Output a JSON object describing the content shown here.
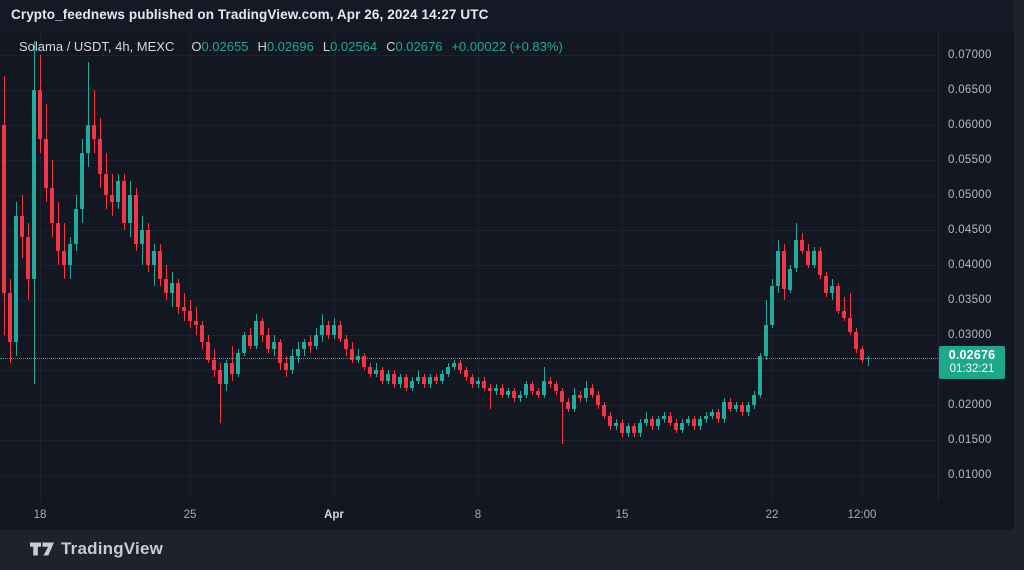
{
  "attribution": {
    "text": "Crypto_feednews published on TradingView.com, Apr 26, 2024 14:27 UTC"
  },
  "legend": {
    "symbol": "Solama / USDT, 4h, MEXC",
    "ohlc": [
      {
        "label": "O",
        "value": "0.02655"
      },
      {
        "label": "H",
        "value": "0.02696"
      },
      {
        "label": "L",
        "value": "0.02564"
      },
      {
        "label": "C",
        "value": "0.02676"
      }
    ],
    "change": "+0.00022 (+0.83%)"
  },
  "price_axis": {
    "last_price": "0.02676",
    "countdown": "01:32:21"
  },
  "footer": {
    "brand": "TradingView"
  },
  "colors": {
    "up": "#22ab9c",
    "down": "#f23645",
    "value_text": "#27a596",
    "last_label_bg": "#1fa78e"
  },
  "chart_data": {
    "type": "candlestick",
    "title": "Solama / USDT, 4h, MEXC",
    "symbol": "Solama / USDT",
    "interval": "4h",
    "exchange": "MEXC",
    "grid": true,
    "legend_position": "top-left",
    "last": {
      "open": 0.02655,
      "high": 0.02696,
      "low": 0.02564,
      "close": 0.02676,
      "change": "+0.00022 (+0.83%)"
    },
    "last_price_value": 0.02676,
    "y_domain": [
      0.006429,
      0.073571
    ],
    "y_ticks": [
      {
        "label": "0.07000",
        "price": 0.07
      },
      {
        "label": "0.06500",
        "price": 0.065
      },
      {
        "label": "0.06000",
        "price": 0.06
      },
      {
        "label": "0.05500",
        "price": 0.055
      },
      {
        "label": "0.05000",
        "price": 0.05
      },
      {
        "label": "0.04500",
        "price": 0.045
      },
      {
        "label": "0.04000",
        "price": 0.04
      },
      {
        "label": "0.03500",
        "price": 0.035
      },
      {
        "label": "0.03000",
        "price": 0.03
      },
      {
        "label": "0.02500",
        "price": 0.025,
        "hidden": true
      },
      {
        "label": "0.02000",
        "price": 0.02
      },
      {
        "label": "0.01500",
        "price": 0.015
      },
      {
        "label": "0.01000",
        "price": 0.01
      }
    ],
    "x_ticks": [
      {
        "label": "18",
        "index": 6
      },
      {
        "label": "25",
        "index": 31
      },
      {
        "label": "Apr",
        "index": 55,
        "major": true
      },
      {
        "label": "8",
        "index": 79
      },
      {
        "label": "15",
        "index": 103
      },
      {
        "label": "22",
        "index": 128
      },
      {
        "label": "12:00",
        "index": 143
      }
    ],
    "x_slots": 145,
    "x_start": 4,
    "x_step": 6,
    "candles": [
      [
        0.06,
        0.067,
        0.03,
        0.036
      ],
      [
        0.036,
        0.038,
        0.026,
        0.029
      ],
      [
        0.029,
        0.049,
        0.027,
        0.047
      ],
      [
        0.047,
        0.05,
        0.041,
        0.044
      ],
      [
        0.044,
        0.046,
        0.035,
        0.038
      ],
      [
        0.038,
        0.072,
        0.023,
        0.065
      ],
      [
        0.065,
        0.07,
        0.056,
        0.058
      ],
      [
        0.058,
        0.063,
        0.049,
        0.051
      ],
      [
        0.051,
        0.055,
        0.044,
        0.046
      ],
      [
        0.046,
        0.049,
        0.04,
        0.042
      ],
      [
        0.042,
        0.046,
        0.038,
        0.04
      ],
      [
        0.04,
        0.044,
        0.038,
        0.043
      ],
      [
        0.043,
        0.05,
        0.042,
        0.048
      ],
      [
        0.048,
        0.058,
        0.046,
        0.056
      ],
      [
        0.056,
        0.069,
        0.054,
        0.06
      ],
      [
        0.06,
        0.065,
        0.056,
        0.058
      ],
      [
        0.058,
        0.061,
        0.051,
        0.053
      ],
      [
        0.053,
        0.056,
        0.048,
        0.05
      ],
      [
        0.05,
        0.053,
        0.047,
        0.049
      ],
      [
        0.049,
        0.053,
        0.048,
        0.052
      ],
      [
        0.052,
        0.053,
        0.045,
        0.046
      ],
      [
        0.046,
        0.052,
        0.044,
        0.05
      ],
      [
        0.05,
        0.051,
        0.042,
        0.043
      ],
      [
        0.043,
        0.047,
        0.04,
        0.045
      ],
      [
        0.045,
        0.046,
        0.039,
        0.04
      ],
      [
        0.04,
        0.043,
        0.037,
        0.042
      ],
      [
        0.042,
        0.043,
        0.037,
        0.038
      ],
      [
        0.038,
        0.04,
        0.035,
        0.036
      ],
      [
        0.036,
        0.039,
        0.034,
        0.0375
      ],
      [
        0.0375,
        0.038,
        0.033,
        0.034
      ],
      [
        0.034,
        0.036,
        0.032,
        0.0335
      ],
      [
        0.0335,
        0.035,
        0.031,
        0.032
      ],
      [
        0.032,
        0.034,
        0.03,
        0.0315
      ],
      [
        0.0315,
        0.032,
        0.028,
        0.029
      ],
      [
        0.029,
        0.03,
        0.026,
        0.0265
      ],
      [
        0.0265,
        0.028,
        0.024,
        0.025
      ],
      [
        0.025,
        0.026,
        0.0175,
        0.023
      ],
      [
        0.023,
        0.0265,
        0.022,
        0.026
      ],
      [
        0.026,
        0.0285,
        0.0235,
        0.0245
      ],
      [
        0.0245,
        0.028,
        0.024,
        0.0275
      ],
      [
        0.0275,
        0.0305,
        0.027,
        0.03
      ],
      [
        0.03,
        0.031,
        0.028,
        0.0285
      ],
      [
        0.0285,
        0.033,
        0.028,
        0.032
      ],
      [
        0.032,
        0.0325,
        0.029,
        0.03
      ],
      [
        0.03,
        0.031,
        0.0275,
        0.028
      ],
      [
        0.028,
        0.03,
        0.027,
        0.029
      ],
      [
        0.029,
        0.0295,
        0.025,
        0.026
      ],
      [
        0.026,
        0.027,
        0.024,
        0.025
      ],
      [
        0.025,
        0.028,
        0.0245,
        0.027
      ],
      [
        0.027,
        0.029,
        0.026,
        0.028
      ],
      [
        0.028,
        0.0295,
        0.027,
        0.029
      ],
      [
        0.029,
        0.03,
        0.0275,
        0.0285
      ],
      [
        0.0285,
        0.031,
        0.028,
        0.03
      ],
      [
        0.03,
        0.033,
        0.029,
        0.0315
      ],
      [
        0.0315,
        0.032,
        0.0295,
        0.03
      ],
      [
        0.03,
        0.0325,
        0.0295,
        0.0315
      ],
      [
        0.0315,
        0.032,
        0.029,
        0.0295
      ],
      [
        0.0295,
        0.03,
        0.027,
        0.028
      ],
      [
        0.028,
        0.029,
        0.026,
        0.0265
      ],
      [
        0.0265,
        0.028,
        0.026,
        0.027
      ],
      [
        0.027,
        0.0275,
        0.025,
        0.0255
      ],
      [
        0.0255,
        0.026,
        0.024,
        0.0245
      ],
      [
        0.0245,
        0.026,
        0.024,
        0.025
      ],
      [
        0.025,
        0.0255,
        0.023,
        0.0235
      ],
      [
        0.0235,
        0.025,
        0.023,
        0.0245
      ],
      [
        0.0245,
        0.025,
        0.0225,
        0.023
      ],
      [
        0.023,
        0.0245,
        0.0225,
        0.024
      ],
      [
        0.024,
        0.0245,
        0.022,
        0.0225
      ],
      [
        0.0225,
        0.024,
        0.022,
        0.0235
      ],
      [
        0.0235,
        0.025,
        0.023,
        0.024
      ],
      [
        0.024,
        0.0245,
        0.0225,
        0.023
      ],
      [
        0.023,
        0.0245,
        0.0225,
        0.024
      ],
      [
        0.024,
        0.0245,
        0.023,
        0.0235
      ],
      [
        0.0235,
        0.025,
        0.023,
        0.0245
      ],
      [
        0.0245,
        0.026,
        0.024,
        0.0255
      ],
      [
        0.0255,
        0.0265,
        0.025,
        0.026
      ],
      [
        0.026,
        0.0265,
        0.0245,
        0.025
      ],
      [
        0.025,
        0.0255,
        0.0235,
        0.024
      ],
      [
        0.024,
        0.0245,
        0.0225,
        0.023
      ],
      [
        0.023,
        0.024,
        0.0225,
        0.0235
      ],
      [
        0.0235,
        0.024,
        0.022,
        0.0225
      ],
      [
        0.0225,
        0.023,
        0.0195,
        0.022
      ],
      [
        0.022,
        0.023,
        0.0215,
        0.0225
      ],
      [
        0.0225,
        0.023,
        0.021,
        0.0215
      ],
      [
        0.0215,
        0.0225,
        0.021,
        0.022
      ],
      [
        0.022,
        0.0225,
        0.0205,
        0.021
      ],
      [
        0.021,
        0.022,
        0.0205,
        0.0215
      ],
      [
        0.0215,
        0.0235,
        0.021,
        0.023
      ],
      [
        0.023,
        0.0235,
        0.0215,
        0.022
      ],
      [
        0.022,
        0.0225,
        0.021,
        0.0215
      ],
      [
        0.0215,
        0.0255,
        0.021,
        0.0235
      ],
      [
        0.0235,
        0.024,
        0.0225,
        0.023
      ],
      [
        0.023,
        0.0235,
        0.0215,
        0.022
      ],
      [
        0.022,
        0.0225,
        0.0145,
        0.0205
      ],
      [
        0.0205,
        0.021,
        0.019,
        0.0195
      ],
      [
        0.0195,
        0.0225,
        0.019,
        0.0215
      ],
      [
        0.0215,
        0.022,
        0.0205,
        0.021
      ],
      [
        0.021,
        0.0235,
        0.0205,
        0.0225
      ],
      [
        0.0225,
        0.023,
        0.021,
        0.0215
      ],
      [
        0.0215,
        0.022,
        0.0195,
        0.02
      ],
      [
        0.02,
        0.0205,
        0.018,
        0.0185
      ],
      [
        0.0185,
        0.019,
        0.0165,
        0.017
      ],
      [
        0.017,
        0.018,
        0.0165,
        0.0175
      ],
      [
        0.0175,
        0.018,
        0.0155,
        0.016
      ],
      [
        0.016,
        0.0175,
        0.0155,
        0.017
      ],
      [
        0.017,
        0.0175,
        0.0155,
        0.016
      ],
      [
        0.016,
        0.018,
        0.0155,
        0.0175
      ],
      [
        0.0175,
        0.019,
        0.017,
        0.018
      ],
      [
        0.018,
        0.0185,
        0.0165,
        0.017
      ],
      [
        0.017,
        0.0185,
        0.0165,
        0.018
      ],
      [
        0.018,
        0.019,
        0.0175,
        0.0185
      ],
      [
        0.0185,
        0.019,
        0.017,
        0.0175
      ],
      [
        0.0175,
        0.018,
        0.016,
        0.0165
      ],
      [
        0.0165,
        0.018,
        0.016,
        0.0175
      ],
      [
        0.0175,
        0.0185,
        0.017,
        0.018
      ],
      [
        0.018,
        0.0185,
        0.0165,
        0.017
      ],
      [
        0.017,
        0.0185,
        0.0165,
        0.018
      ],
      [
        0.018,
        0.019,
        0.0175,
        0.0185
      ],
      [
        0.0185,
        0.0195,
        0.018,
        0.019
      ],
      [
        0.019,
        0.0195,
        0.0175,
        0.018
      ],
      [
        0.018,
        0.021,
        0.0175,
        0.0205
      ],
      [
        0.0205,
        0.021,
        0.019,
        0.0195
      ],
      [
        0.0195,
        0.0205,
        0.019,
        0.02
      ],
      [
        0.02,
        0.0205,
        0.0185,
        0.019
      ],
      [
        0.019,
        0.0205,
        0.0185,
        0.02
      ],
      [
        0.02,
        0.022,
        0.0195,
        0.0215
      ],
      [
        0.0215,
        0.0275,
        0.021,
        0.027
      ],
      [
        0.027,
        0.035,
        0.0265,
        0.0315
      ],
      [
        0.0315,
        0.038,
        0.031,
        0.037
      ],
      [
        0.037,
        0.0435,
        0.036,
        0.042
      ],
      [
        0.042,
        0.043,
        0.035,
        0.0365
      ],
      [
        0.0365,
        0.04,
        0.036,
        0.0395
      ],
      [
        0.0395,
        0.046,
        0.039,
        0.0435
      ],
      [
        0.0435,
        0.0445,
        0.0415,
        0.042
      ],
      [
        0.042,
        0.043,
        0.0395,
        0.04
      ],
      [
        0.04,
        0.0425,
        0.0395,
        0.042
      ],
      [
        0.042,
        0.0425,
        0.038,
        0.0385
      ],
      [
        0.0385,
        0.039,
        0.0355,
        0.036
      ],
      [
        0.036,
        0.038,
        0.035,
        0.037
      ],
      [
        0.037,
        0.0375,
        0.033,
        0.0335
      ],
      [
        0.0335,
        0.0355,
        0.032,
        0.0325
      ],
      [
        0.0325,
        0.036,
        0.03,
        0.0305
      ],
      [
        0.0305,
        0.031,
        0.0275,
        0.028
      ],
      [
        0.028,
        0.0285,
        0.026,
        0.0265
      ],
      [
        0.02655,
        0.02696,
        0.02564,
        0.02676
      ]
    ]
  }
}
